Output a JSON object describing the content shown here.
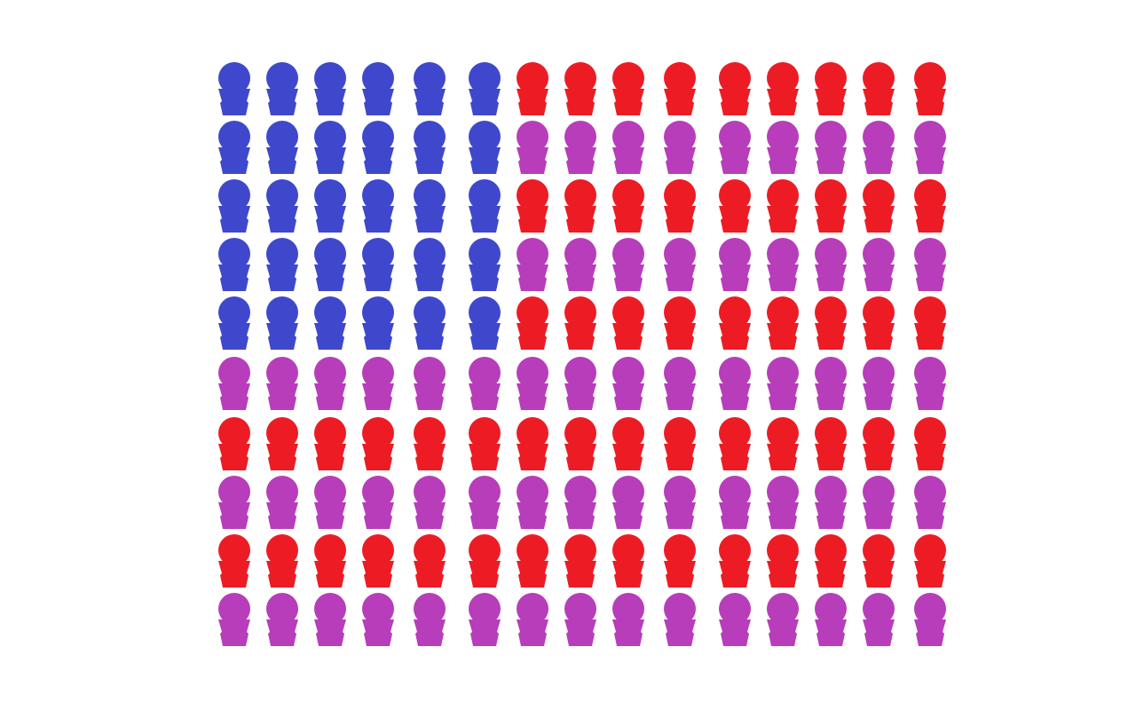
{
  "colors": {
    "union": "#3f48cc",
    "stripe_a": "#ed1c24",
    "stripe_b": "#b83dba"
  }
}
